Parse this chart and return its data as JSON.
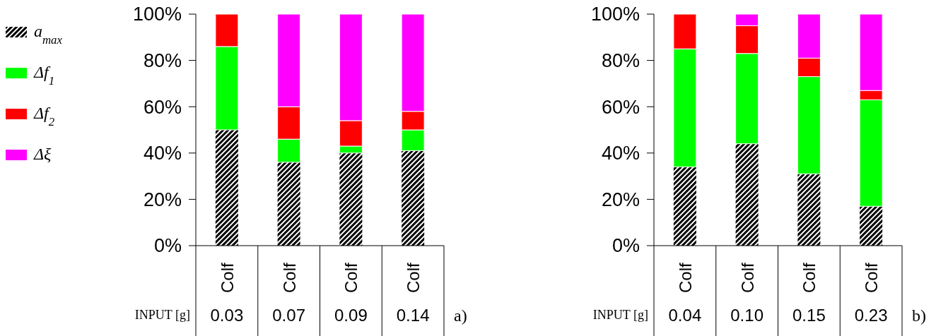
{
  "chart_data": [
    {
      "type": "bar",
      "stacked": true,
      "categories": [
        "0.03",
        "0.07",
        "0.09",
        "0.14"
      ],
      "xlabel": "INPUT  [g]",
      "ylim": [
        0,
        100
      ],
      "yticks": [
        {
          "value": 0,
          "label": "0%"
        },
        {
          "value": 20,
          "label": "20%"
        },
        {
          "value": 40,
          "label": "40%"
        },
        {
          "value": 60,
          "label": "60%"
        },
        {
          "value": 80,
          "label": "80%"
        },
        {
          "value": 100,
          "label": "100%"
        }
      ],
      "legend": "left",
      "annotations": [
        "Colf",
        "Colf",
        "Colf",
        "Colf",
        "a)"
      ],
      "series": [
        {
          "name": "a$_{max}$",
          "color": "#000000",
          "values": [
            50,
            36,
            40,
            41
          ]
        },
        {
          "name": "Δf$_{1}$",
          "color": "#00ff00",
          "values": [
            36,
            10,
            3,
            9
          ]
        },
        {
          "name": "Δf$_{2}$",
          "color": "#ff0000",
          "values": [
            14,
            14,
            11,
            8
          ]
        },
        {
          "name": "Δξ",
          "color": "#ff00ff",
          "values": [
            0,
            40,
            46,
            42
          ]
        }
      ]
    },
    {
      "type": "bar",
      "stacked": true,
      "categories": [
        "0.04",
        "0.10",
        "0.15",
        "0.23"
      ],
      "xlabel": "INPUT  [g]",
      "ylim": [
        0,
        100
      ],
      "yticks": [
        {
          "value": 0,
          "label": "0%"
        },
        {
          "value": 20,
          "label": "20%"
        },
        {
          "value": 40,
          "label": "40%"
        },
        {
          "value": 60,
          "label": "60%"
        },
        {
          "value": 80,
          "label": "80%"
        },
        {
          "value": 100,
          "label": "100%"
        }
      ],
      "annotations": [
        "Colf",
        "Colf",
        "Colf",
        "Colf",
        "b)"
      ],
      "series": [
        {
          "color": "#000000",
          "values": [
            34,
            44,
            31,
            17
          ]
        },
        {
          "color": "#00ff00",
          "values": [
            51,
            39,
            42,
            46
          ]
        },
        {
          "color": "#ff0000",
          "values": [
            15,
            12,
            8,
            4
          ]
        },
        {
          "color": "#ff00ff",
          "values": [
            0,
            5,
            19,
            33
          ]
        }
      ]
    }
  ]
}
